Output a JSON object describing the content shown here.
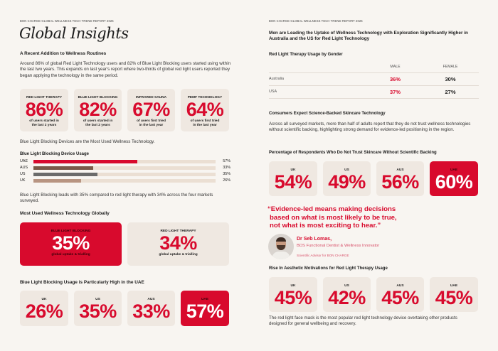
{
  "left": {
    "kicker": "BON CHARGE GLOBAL WELLNESS TECH TREND REPORT 2026",
    "title": "Global Insights",
    "section1": {
      "heading": "A Recent Addition to Wellness Routines",
      "paragraph": "Around 86% of global Red Light Technology users and 82% of Blue Light Blocking users started using within the last two years. This expands on last year's report where two-thirds of global red light users reported they began applying the technology in the same period.",
      "cards": [
        {
          "label": "RED LIGHT THERAPY",
          "value": "86%",
          "sub1": "of users started in",
          "sub2": "the last 2 years"
        },
        {
          "label": "BLUE LIGHT BLOCKING",
          "value": "82%",
          "sub1": "of users started in",
          "sub2": "the last 2 years"
        },
        {
          "label": "INFRARED SAUNA",
          "value": "67%",
          "sub1": "of users first tried",
          "sub2": "in the last year"
        },
        {
          "label": "PEMF TECHNOLOGY",
          "value": "64%",
          "sub1": "of users first tried",
          "sub2": "in the last year"
        }
      ]
    },
    "intro2": "Blue Light Blocking Devices are the Most Used Wellness Technology.",
    "chart_data": {
      "type": "bar",
      "orientation": "horizontal",
      "title": "Blue Light Blocking Device Usage",
      "xlim": [
        0,
        100
      ],
      "categories": [
        "UAE",
        "AUS",
        "US",
        "UK"
      ],
      "values": [
        57,
        33,
        35,
        26
      ],
      "labels": [
        "57%",
        "33%",
        "35%",
        "26%"
      ],
      "colors": [
        "#d80a2d",
        "#7a5a48",
        "#6b6b6b",
        "#b89582"
      ],
      "track_color": "#ebdfd3"
    },
    "paragraph2": "Blue Light Blocking leads with 35% compared to red light therapy with 34% across the four markets surveyed.",
    "most_used": {
      "heading": "Most Used Wellness Technology Globally",
      "cards": [
        {
          "label": "BLUE LIGHT BLOCKING",
          "value": "35%",
          "sub": "global uptake & trialling",
          "highlight": true
        },
        {
          "label": "RED LIGHT THERAPY",
          "value": "34%",
          "sub": "global uptake & trialling",
          "highlight": false
        }
      ]
    },
    "uae": {
      "heading": "Blue Light Blocking Usage is Particularly High in the UAE",
      "cards": [
        {
          "label": "UK",
          "value": "26%"
        },
        {
          "label": "US",
          "value": "35%"
        },
        {
          "label": "AUS",
          "value": "33%"
        },
        {
          "label": "UAE",
          "value": "57%",
          "highlight": true
        }
      ]
    }
  },
  "right": {
    "kicker": "BON CHARGE GLOBAL WELLNESS TECH TREND REPORT 2026",
    "headline": "Men are Leading the Uptake of Wellness Technology with Exploration Significantly Higher in Australia and the US for Red Light Technology",
    "gender": {
      "heading": "Red Light Therapy Usage by Gender",
      "columns": [
        "MALE",
        "FEMALE"
      ],
      "rows": [
        {
          "country": "Australia",
          "male": "36%",
          "female": "30%"
        },
        {
          "country": "USA",
          "male": "37%",
          "female": "27%"
        }
      ]
    },
    "science": {
      "heading": "Consumers Expect Science-Backed Skincare Technology",
      "paragraph": "Across all surveyed markets, more than half of adults report that they do not trust wellness technologies without scientific backing, highlighting strong demand for evidence-led positioning in the region."
    },
    "trust": {
      "heading": "Percentage of Respondents Who Do Not Trust Skincare Without Scientific Backing",
      "cards": [
        {
          "label": "UK",
          "value": "54%"
        },
        {
          "label": "US",
          "value": "49%"
        },
        {
          "label": "AUS",
          "value": "56%"
        },
        {
          "label": "UAE",
          "value": "60%",
          "highlight": true
        }
      ]
    },
    "quote": {
      "line1": "“Evidence-led means making decisions",
      "line2": "based on what is most likely to be true,",
      "line3": "not what is most exciting to hear.”",
      "name": "Dr Seb Lomas,",
      "role": "BDS Functional Dentist & Wellness Innovator",
      "advisor": "Scientific Advisor for BON CHARGE"
    },
    "aesthetic": {
      "heading": "Rise In Aesthetic Motivations for Red Light Therapy Usage",
      "cards": [
        {
          "label": "UK",
          "value": "45%"
        },
        {
          "label": "US",
          "value": "42%"
        },
        {
          "label": "AUS",
          "value": "45%"
        },
        {
          "label": "UAE",
          "value": "45%"
        }
      ],
      "paragraph": "The red light face mask is the most popular red light technology device overtaking other products designed for general wellbeing and recovery."
    }
  },
  "colors": {
    "accent": "#d80a2d",
    "card": "#efe8e1",
    "page": "#f8f5f1"
  }
}
